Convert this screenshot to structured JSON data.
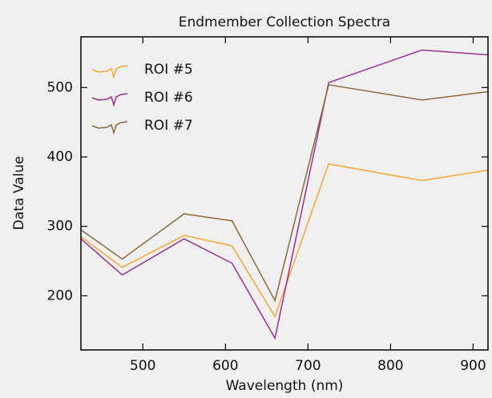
{
  "chart_data": {
    "type": "line",
    "title": "Endmember Collection Spectra",
    "x_label": "Wavelength (nm)",
    "y_label": "Data Value",
    "x": [
      425,
      475,
      550,
      608,
      660,
      725,
      838,
      918
    ],
    "series": [
      {
        "name": "ROI #5",
        "color": "#f5a833",
        "values": [
          285,
          241,
          287,
          272,
          170,
          390,
          366,
          381
        ]
      },
      {
        "name": "ROI #6",
        "color": "#9c2f8c",
        "values": [
          282,
          230,
          282,
          247,
          139,
          507,
          554,
          547
        ]
      },
      {
        "name": "ROI #7",
        "color": "#8a6a3c",
        "values": [
          295,
          253,
          318,
          308,
          193,
          504,
          482,
          494
        ]
      }
    ],
    "xlim": [
      425,
      918
    ],
    "xticks": [
      500,
      600,
      700,
      800,
      900
    ],
    "ylim": [
      122,
      573
    ],
    "yticks": [
      200,
      300,
      400,
      500
    ],
    "legend": "upper left"
  }
}
